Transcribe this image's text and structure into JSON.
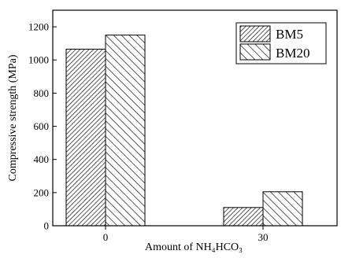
{
  "chart_data": {
    "type": "bar",
    "categories": [
      "0",
      "30"
    ],
    "series": [
      {
        "name": "BM5",
        "values": [
          1065,
          110
        ]
      },
      {
        "name": "BM20",
        "values": [
          1150,
          205
        ]
      }
    ],
    "title": "",
    "xlabel": "Amount of NH₄HCO₃",
    "ylabel": "Compressive strength (MPa)",
    "ylim": [
      0,
      1300
    ],
    "yticks": [
      "0",
      "200",
      "400",
      "600",
      "800",
      "1000",
      "1200"
    ],
    "grid": false,
    "legend_position": "top-right",
    "patterns": [
      "dense-diagonal-hatch",
      "sparse-diagonal-hatch"
    ]
  }
}
